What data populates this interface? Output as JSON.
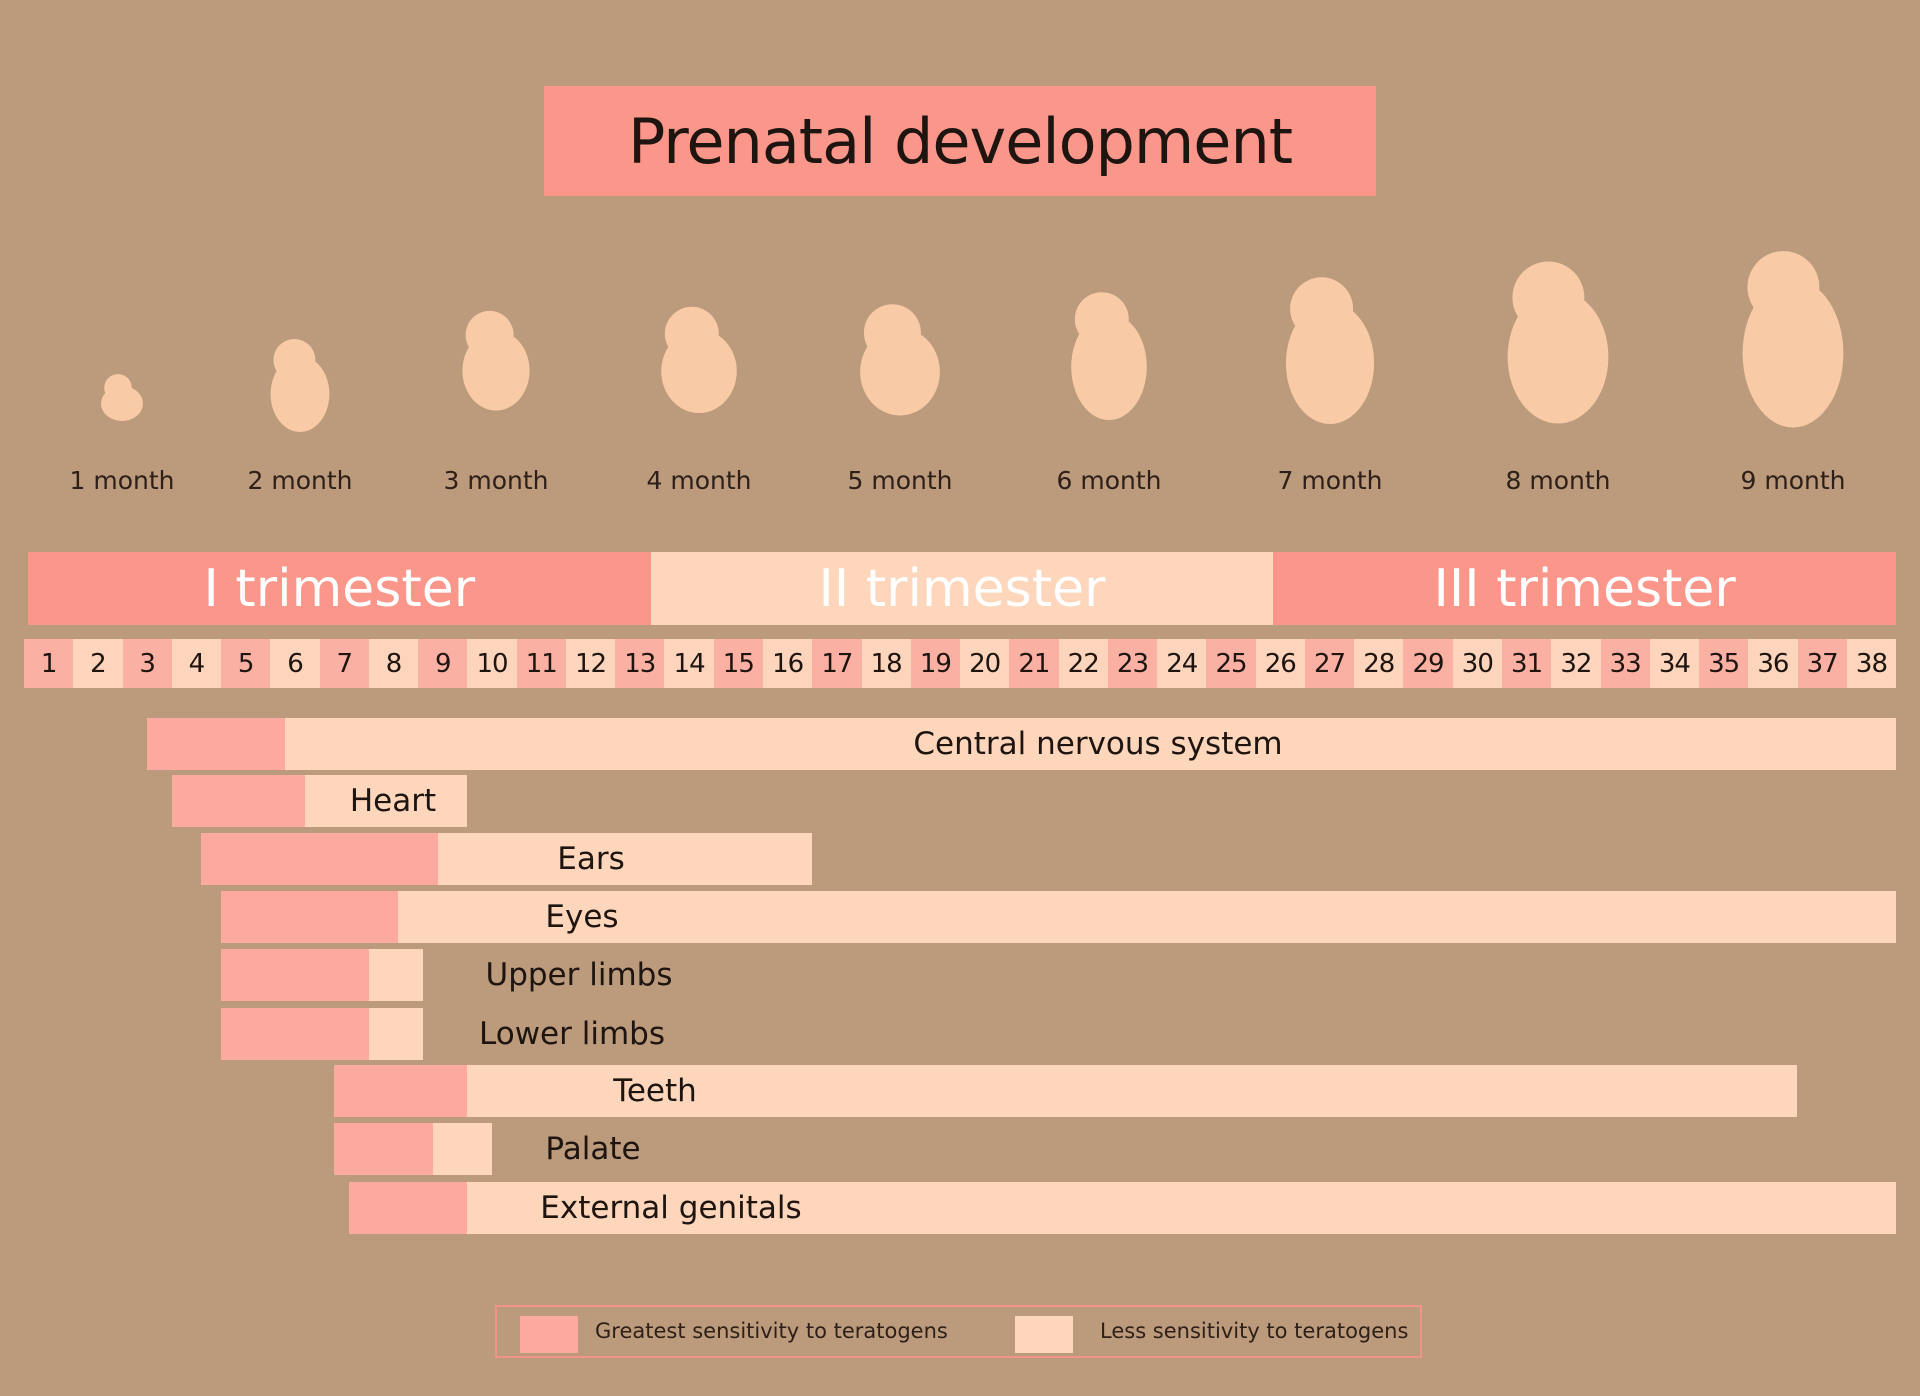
{
  "title": "Prenatal development",
  "colors": {
    "background": "#bc9a7c",
    "accent_pink": "#fa968a",
    "greatest": "#fcaaa0",
    "less": "#fdd6bc",
    "week_odd": "#fbb0a4",
    "week_even": "#fdd5bc",
    "fetus": "#f8caa6"
  },
  "months": [
    "1 month",
    "2 month",
    "3 month",
    "4 month",
    "5 month",
    "6 month",
    "7 month",
    "8 month",
    "9 month"
  ],
  "trimesters": [
    {
      "label": "I trimester",
      "color": "#fa968a"
    },
    {
      "label": "II trimester",
      "color": "#fdd6bc"
    },
    {
      "label": "III trimester",
      "color": "#fa968a"
    }
  ],
  "weeks": [
    "1",
    "2",
    "3",
    "4",
    "5",
    "6",
    "7",
    "8",
    "9",
    "10",
    "11",
    "12",
    "13",
    "14",
    "15",
    "16",
    "17",
    "18",
    "19",
    "20",
    "21",
    "22",
    "23",
    "24",
    "25",
    "26",
    "27",
    "28",
    "29",
    "30",
    "31",
    "32",
    "33",
    "34",
    "35",
    "36",
    "37",
    "38"
  ],
  "chart_data": {
    "type": "bar",
    "orientation": "horizontal-gantt",
    "x_unit": "weeks",
    "xlim": [
      0,
      38
    ],
    "rows": [
      {
        "label": "Central nervous system",
        "start": 2.5,
        "peak_end": 5.3,
        "end": 38
      },
      {
        "label": "Heart",
        "start": 3.0,
        "peak_end": 5.7,
        "end": 9.0
      },
      {
        "label": "Ears",
        "start": 3.6,
        "peak_end": 8.4,
        "end": 16.0
      },
      {
        "label": "Eyes",
        "start": 4.0,
        "peak_end": 7.6,
        "end": 38
      },
      {
        "label": "Upper limbs",
        "start": 4.0,
        "peak_end": 7.0,
        "end": 8.1
      },
      {
        "label": "Lower limbs",
        "start": 4.0,
        "peak_end": 7.0,
        "end": 8.1
      },
      {
        "label": "Teeth",
        "start": 6.3,
        "peak_end": 9.0,
        "end": 36.0
      },
      {
        "label": "Palate",
        "start": 6.3,
        "peak_end": 8.3,
        "end": 9.5
      },
      {
        "label": "External genitals",
        "start": 6.6,
        "peak_end": 9.0,
        "end": 38
      }
    ]
  },
  "legend": [
    {
      "label": "Greatest sensitivity to teratogens",
      "color": "#fcaaa0"
    },
    {
      "label": "Less sensitivity to teratogens",
      "color": "#fdd6bc"
    }
  ]
}
